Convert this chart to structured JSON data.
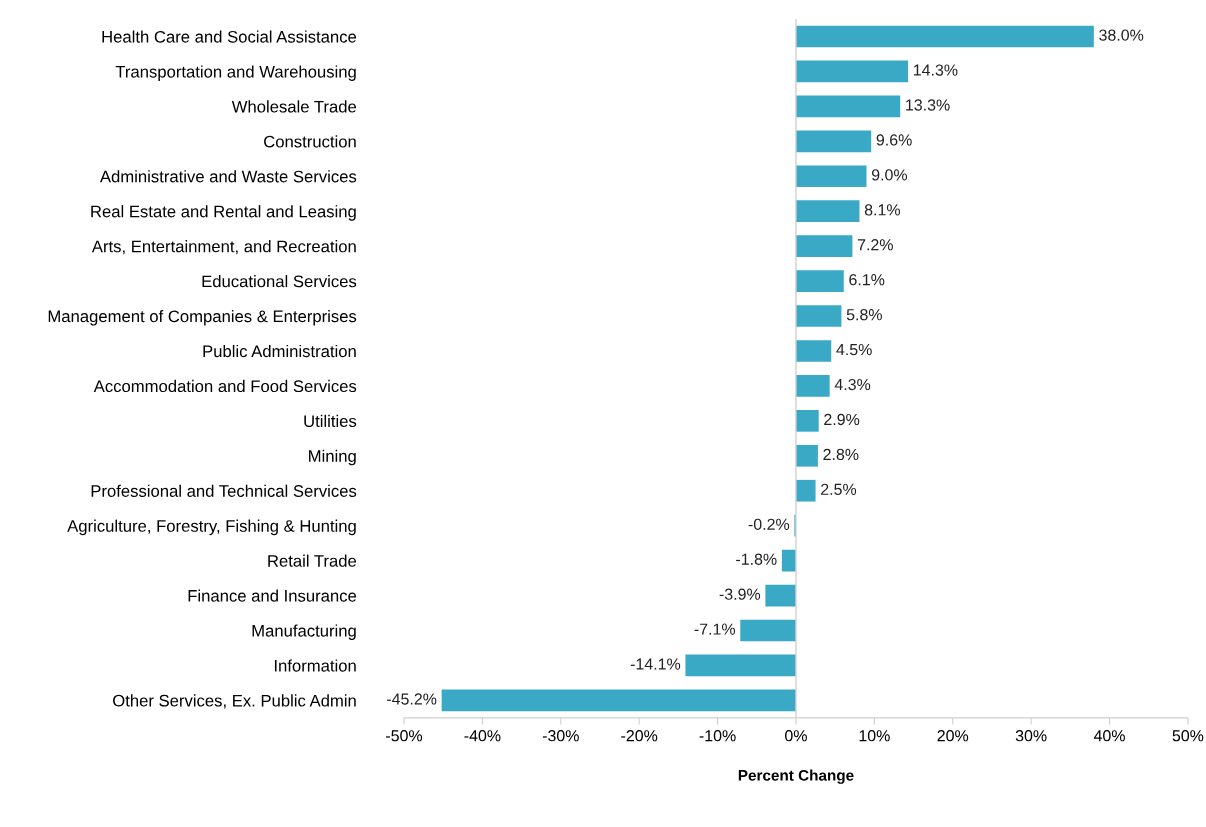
{
  "chart_data": {
    "type": "bar",
    "orientation": "horizontal",
    "xlabel": "Percent Change",
    "categories": [
      "Health Care and Social Assistance",
      "Transportation and Warehousing",
      "Wholesale Trade",
      "Construction",
      "Administrative and Waste Services",
      "Real Estate and Rental and Leasing",
      "Arts, Entertainment, and Recreation",
      "Educational Services",
      "Management of Companies & Enterprises",
      "Public Administration",
      "Accommodation and Food Services",
      "Utilities",
      "Mining",
      "Professional and Technical Services",
      "Agriculture, Forestry, Fishing & Hunting",
      "Retail Trade",
      "Finance and Insurance",
      "Manufacturing",
      "Information",
      "Other Services, Ex. Public Admin"
    ],
    "values": [
      38.0,
      14.3,
      13.3,
      9.6,
      9.0,
      8.1,
      7.2,
      6.1,
      5.8,
      4.5,
      4.3,
      2.9,
      2.8,
      2.5,
      -0.2,
      -1.8,
      -3.9,
      -7.1,
      -14.1,
      -45.2
    ],
    "value_labels": [
      "38.0%",
      "14.3%",
      "13.3%",
      "9.6%",
      "9.0%",
      "8.1%",
      "7.2%",
      "6.1%",
      "5.8%",
      "4.5%",
      "4.3%",
      "2.9%",
      "2.8%",
      "2.5%",
      "-0.2%",
      "-1.8%",
      "-3.9%",
      "-7.1%",
      "-14.1%",
      "-45.2%"
    ],
    "color": "#3aa9c6",
    "xlim": [
      -50,
      50
    ],
    "xticks": [
      {
        "value": -50,
        "label": "-50%"
      },
      {
        "value": -40,
        "label": "-40%"
      },
      {
        "value": -30,
        "label": "-30%"
      },
      {
        "value": -20,
        "label": "-20%"
      },
      {
        "value": -10,
        "label": "-10%"
      },
      {
        "value": 0,
        "label": "0%"
      },
      {
        "value": 10,
        "label": "10%"
      },
      {
        "value": 20,
        "label": "20%"
      },
      {
        "value": 30,
        "label": "30%"
      },
      {
        "value": 40,
        "label": "40%"
      },
      {
        "value": 50,
        "label": "50%"
      }
    ],
    "ref_lines": [
      {
        "axis": "x",
        "value": 0,
        "color": "#d0d0d0"
      }
    ],
    "grid": false,
    "legend": false
  }
}
